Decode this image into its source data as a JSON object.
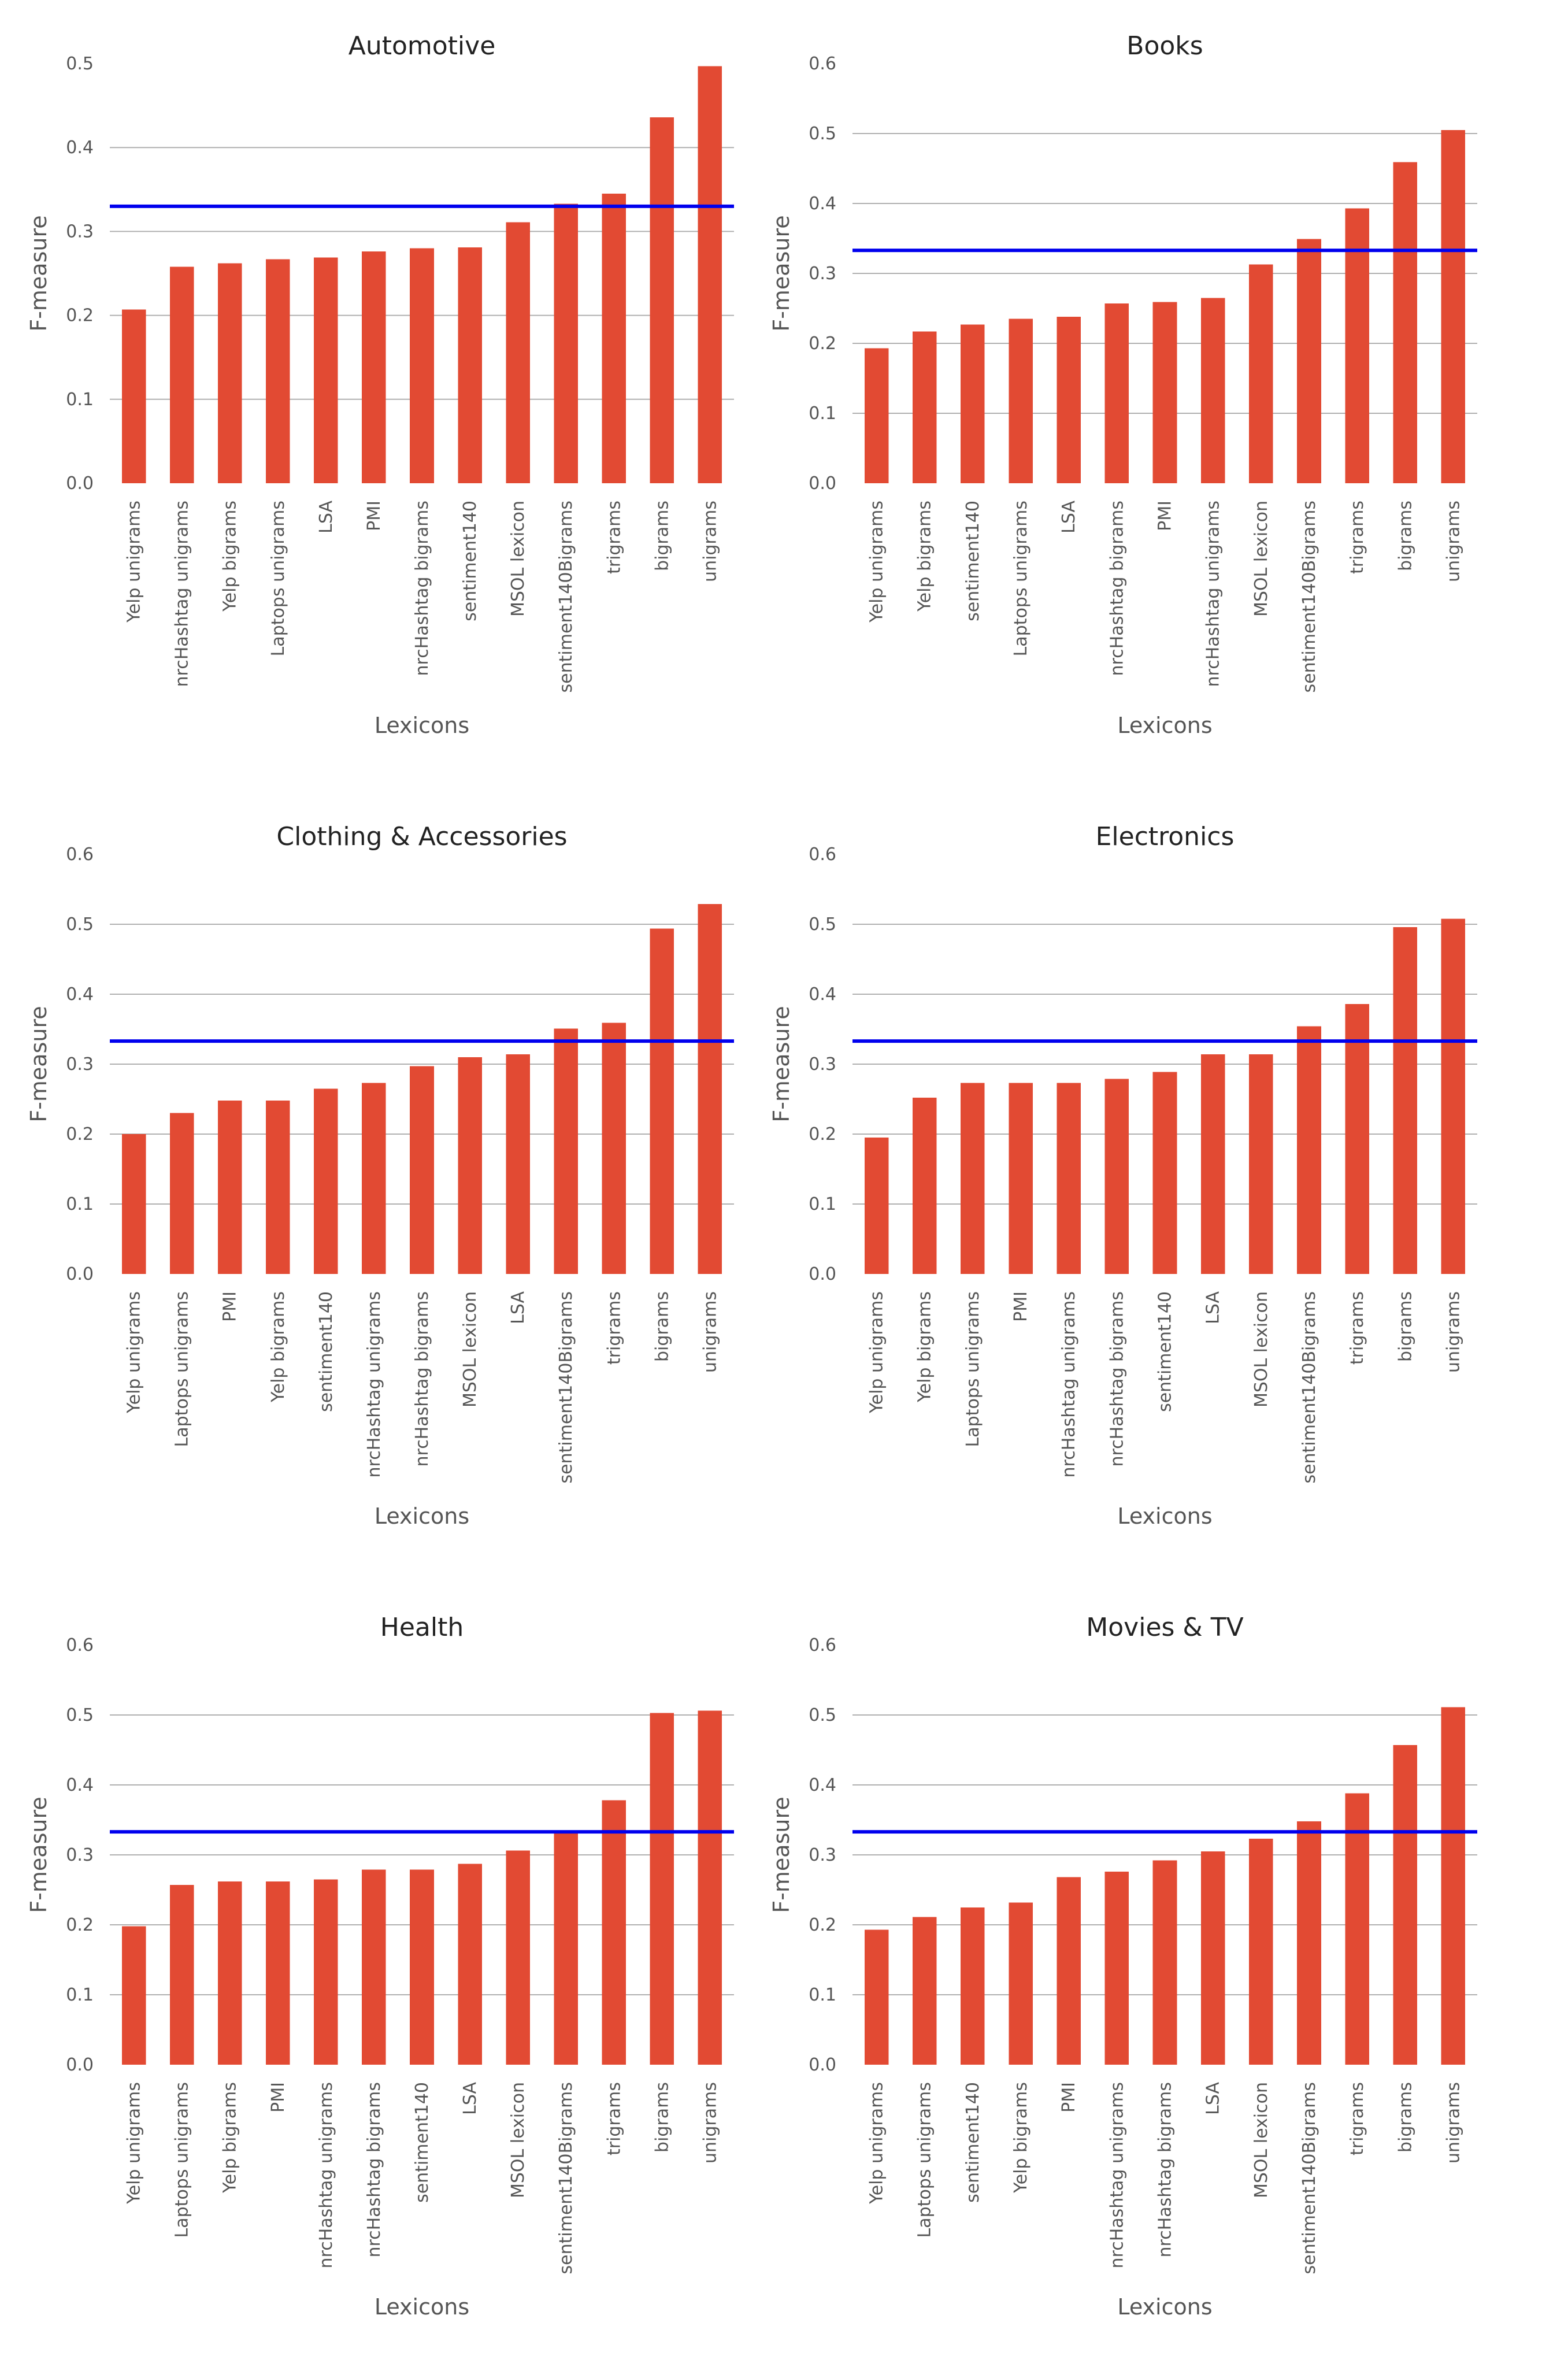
{
  "colors": {
    "bar": "#E24A33",
    "baseline": "#0000EE",
    "grid": "#b0b0b0"
  },
  "chart_data": [
    {
      "type": "bar",
      "title": "Automotive",
      "xlabel": "Lexicons",
      "ylabel": "F-measure",
      "ylim": [
        0,
        0.5
      ],
      "yticks": [
        "0.0",
        "0.1",
        "0.2",
        "0.3",
        "0.4",
        "0.5"
      ],
      "baseline": 0.33,
      "categories": [
        "Yelp unigrams",
        "nrcHashtag unigrams",
        "Yelp bigrams",
        "Laptops unigrams",
        "LSA",
        "PMI",
        "nrcHashtag bigrams",
        "sentiment140",
        "MSOL lexicon",
        "sentiment140Bigrams",
        "trigrams",
        "bigrams",
        "unigrams"
      ],
      "values": [
        0.207,
        0.258,
        0.262,
        0.267,
        0.269,
        0.276,
        0.28,
        0.281,
        0.311,
        0.333,
        0.345,
        0.436,
        0.497
      ]
    },
    {
      "type": "bar",
      "title": "Books",
      "xlabel": "Lexicons",
      "ylabel": "F-measure",
      "ylim": [
        0,
        0.6
      ],
      "yticks": [
        "0.0",
        "0.1",
        "0.2",
        "0.3",
        "0.4",
        "0.5",
        "0.6"
      ],
      "baseline": 0.333,
      "categories": [
        "Yelp unigrams",
        "Yelp bigrams",
        "sentiment140",
        "Laptops unigrams",
        "LSA",
        "nrcHashtag bigrams",
        "PMI",
        "nrcHashtag unigrams",
        "MSOL lexicon",
        "sentiment140Bigrams",
        "trigrams",
        "bigrams",
        "unigrams"
      ],
      "values": [
        0.193,
        0.217,
        0.227,
        0.235,
        0.238,
        0.257,
        0.259,
        0.265,
        0.313,
        0.349,
        0.393,
        0.459,
        0.505
      ]
    },
    {
      "type": "bar",
      "title": "Clothing & Accessories",
      "xlabel": "Lexicons",
      "ylabel": "F-measure",
      "ylim": [
        0,
        0.6
      ],
      "yticks": [
        "0.0",
        "0.1",
        "0.2",
        "0.3",
        "0.4",
        "0.5",
        "0.6"
      ],
      "baseline": 0.333,
      "categories": [
        "Yelp unigrams",
        "Laptops unigrams",
        "PMI",
        "Yelp bigrams",
        "sentiment140",
        "nrcHashtag unigrams",
        "nrcHashtag bigrams",
        "MSOL lexicon",
        "LSA",
        "sentiment140Bigrams",
        "trigrams",
        "bigrams",
        "unigrams"
      ],
      "values": [
        0.2,
        0.23,
        0.248,
        0.248,
        0.265,
        0.273,
        0.297,
        0.31,
        0.314,
        0.351,
        0.359,
        0.494,
        0.529
      ]
    },
    {
      "type": "bar",
      "title": "Electronics",
      "xlabel": "Lexicons",
      "ylabel": "F-measure",
      "ylim": [
        0,
        0.6
      ],
      "yticks": [
        "0.0",
        "0.1",
        "0.2",
        "0.3",
        "0.4",
        "0.5",
        "0.6"
      ],
      "baseline": 0.333,
      "categories": [
        "Yelp unigrams",
        "Yelp bigrams",
        "Laptops unigrams",
        "PMI",
        "nrcHashtag unigrams",
        "nrcHashtag bigrams",
        "sentiment140",
        "LSA",
        "MSOL lexicon",
        "sentiment140Bigrams",
        "trigrams",
        "bigrams",
        "unigrams"
      ],
      "values": [
        0.195,
        0.252,
        0.273,
        0.273,
        0.273,
        0.279,
        0.289,
        0.314,
        0.314,
        0.354,
        0.386,
        0.496,
        0.508
      ]
    },
    {
      "type": "bar",
      "title": "Health",
      "xlabel": "Lexicons",
      "ylabel": "F-measure",
      "ylim": [
        0,
        0.6
      ],
      "yticks": [
        "0.0",
        "0.1",
        "0.2",
        "0.3",
        "0.4",
        "0.5",
        "0.6"
      ],
      "baseline": 0.333,
      "categories": [
        "Yelp unigrams",
        "Laptops unigrams",
        "Yelp bigrams",
        "PMI",
        "nrcHashtag unigrams",
        "nrcHashtag bigrams",
        "sentiment140",
        "LSA",
        "MSOL lexicon",
        "sentiment140Bigrams",
        "trigrams",
        "bigrams",
        "unigrams"
      ],
      "values": [
        0.198,
        0.257,
        0.262,
        0.262,
        0.265,
        0.279,
        0.279,
        0.287,
        0.306,
        0.334,
        0.378,
        0.503,
        0.506
      ]
    },
    {
      "type": "bar",
      "title": "Movies & TV",
      "xlabel": "Lexicons",
      "ylabel": "F-measure",
      "ylim": [
        0,
        0.6
      ],
      "yticks": [
        "0.0",
        "0.1",
        "0.2",
        "0.3",
        "0.4",
        "0.5",
        "0.6"
      ],
      "baseline": 0.333,
      "categories": [
        "Yelp unigrams",
        "Laptops unigrams",
        "sentiment140",
        "Yelp bigrams",
        "PMI",
        "nrcHashtag unigrams",
        "nrcHashtag bigrams",
        "LSA",
        "MSOL lexicon",
        "sentiment140Bigrams",
        "trigrams",
        "bigrams",
        "unigrams"
      ],
      "values": [
        0.193,
        0.211,
        0.225,
        0.232,
        0.268,
        0.276,
        0.292,
        0.305,
        0.323,
        0.348,
        0.388,
        0.457,
        0.511
      ]
    }
  ]
}
